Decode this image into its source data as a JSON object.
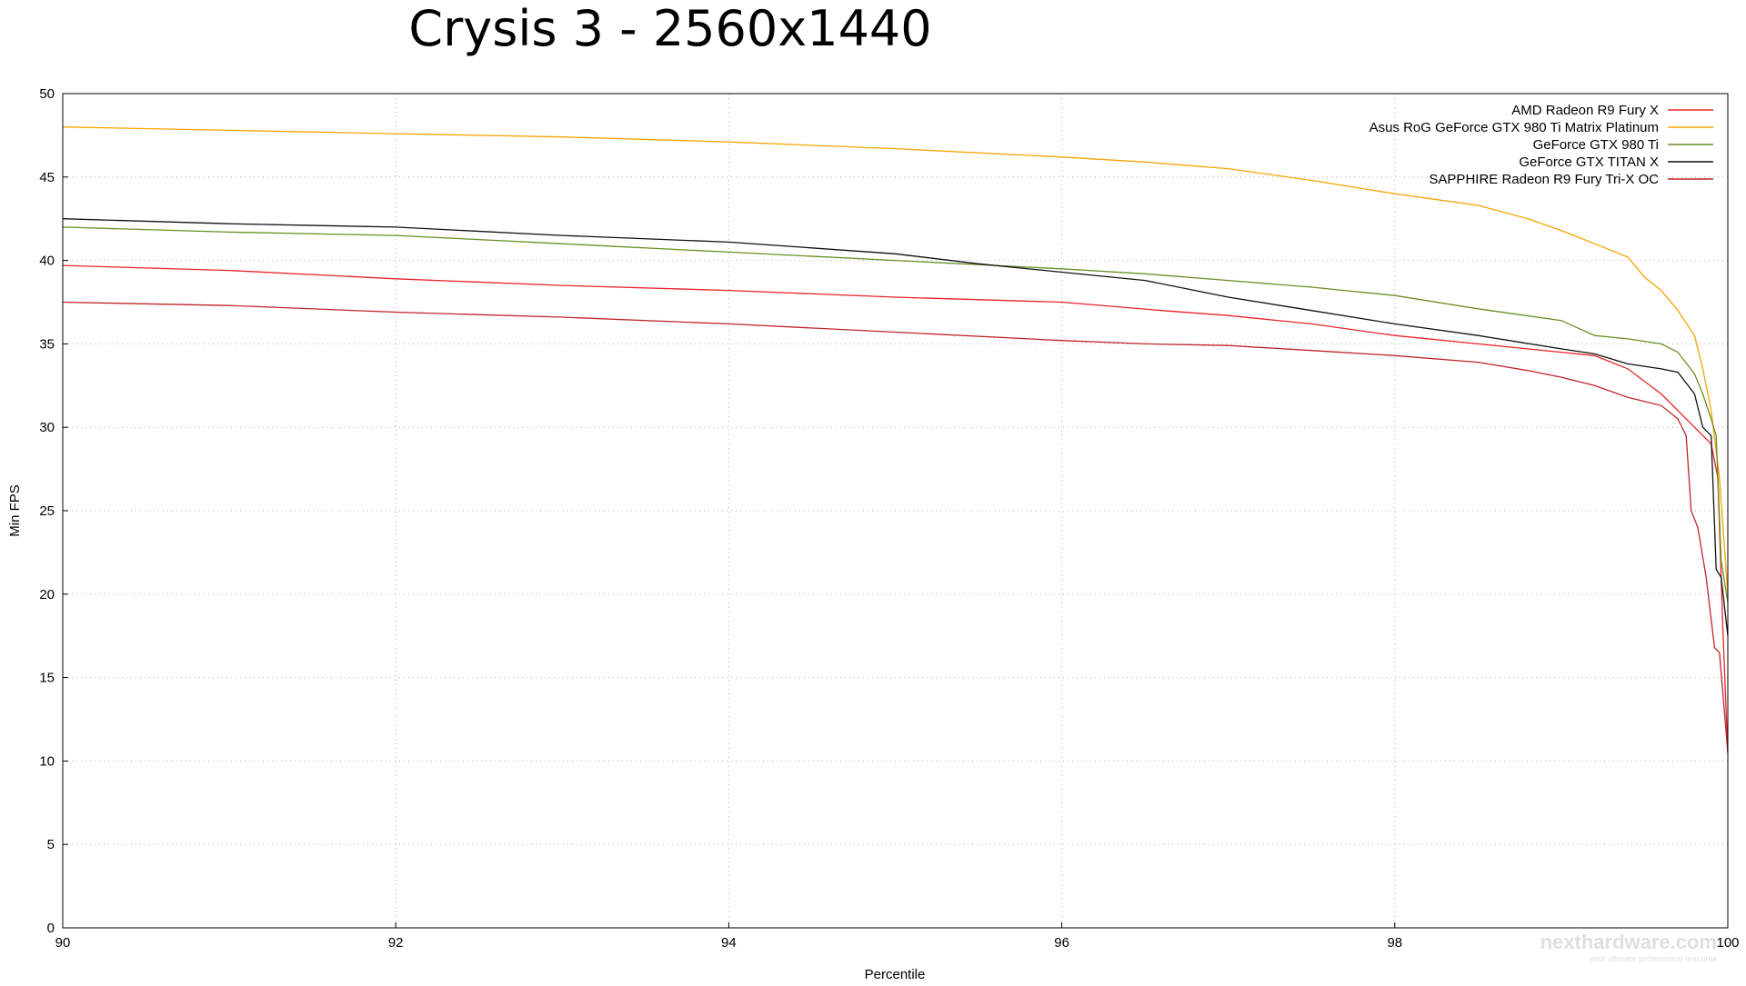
{
  "chart_data": {
    "type": "line",
    "title": "Crysis 3 - 2560x1440",
    "xlabel": "Percentile",
    "ylabel": "Min FPS",
    "xlim": [
      90,
      100
    ],
    "ylim": [
      0,
      50
    ],
    "xticks": [
      90,
      92,
      94,
      96,
      98,
      100
    ],
    "yticks": [
      0,
      5,
      10,
      15,
      20,
      25,
      30,
      35,
      40,
      45,
      50
    ],
    "grid": true,
    "legend_position": "top-right",
    "series": [
      {
        "name": "AMD Radeon R9 Fury X",
        "color": "#e8232a",
        "points": [
          [
            90,
            39.7
          ],
          [
            91,
            39.4
          ],
          [
            92,
            38.9
          ],
          [
            93,
            38.5
          ],
          [
            94,
            38.2
          ],
          [
            95,
            37.8
          ],
          [
            96,
            37.5
          ],
          [
            96.6,
            37.0
          ],
          [
            97,
            36.7
          ],
          [
            97.5,
            36.2
          ],
          [
            98,
            35.5
          ],
          [
            98.5,
            35.0
          ],
          [
            99,
            34.5
          ],
          [
            99.2,
            34.3
          ],
          [
            99.4,
            33.5
          ],
          [
            99.6,
            32.0
          ],
          [
            99.7,
            31.0
          ],
          [
            99.8,
            30.0
          ],
          [
            99.9,
            29.0
          ],
          [
            99.94,
            27.0
          ],
          [
            99.97,
            18.0
          ],
          [
            100,
            10.5
          ]
        ]
      },
      {
        "name": "Asus RoG GeForce GTX 980 Ti Matrix Platinum",
        "color": "#f7a400",
        "points": [
          [
            90,
            48.0
          ],
          [
            91,
            47.8
          ],
          [
            92,
            47.6
          ],
          [
            93,
            47.4
          ],
          [
            94,
            47.1
          ],
          [
            95,
            46.7
          ],
          [
            96,
            46.2
          ],
          [
            96.5,
            45.9
          ],
          [
            97,
            45.5
          ],
          [
            97.5,
            44.8
          ],
          [
            98,
            44.0
          ],
          [
            98.5,
            43.3
          ],
          [
            98.8,
            42.5
          ],
          [
            99,
            41.8
          ],
          [
            99.2,
            41.0
          ],
          [
            99.4,
            40.2
          ],
          [
            99.5,
            39.0
          ],
          [
            99.6,
            38.2
          ],
          [
            99.7,
            37.0
          ],
          [
            99.8,
            35.5
          ],
          [
            99.85,
            33.5
          ],
          [
            99.9,
            31.0
          ],
          [
            99.95,
            27.0
          ],
          [
            100,
            20.0
          ]
        ]
      },
      {
        "name": "GeForce GTX 980 Ti",
        "color": "#6b8e23",
        "points": [
          [
            90,
            42.0
          ],
          [
            91,
            41.7
          ],
          [
            92,
            41.5
          ],
          [
            93,
            41.0
          ],
          [
            94,
            40.5
          ],
          [
            95,
            40.0
          ],
          [
            96,
            39.5
          ],
          [
            96.5,
            39.2
          ],
          [
            97,
            38.8
          ],
          [
            97.5,
            38.4
          ],
          [
            98,
            37.9
          ],
          [
            98.5,
            37.1
          ],
          [
            99,
            36.4
          ],
          [
            99.2,
            35.5
          ],
          [
            99.4,
            35.3
          ],
          [
            99.6,
            35.0
          ],
          [
            99.7,
            34.5
          ],
          [
            99.8,
            33.2
          ],
          [
            99.85,
            32.0
          ],
          [
            99.9,
            30.5
          ],
          [
            99.93,
            29.5
          ],
          [
            99.96,
            22.0
          ],
          [
            100,
            19.5
          ]
        ]
      },
      {
        "name": "GeForce GTX TITAN X",
        "color": "#111111",
        "points": [
          [
            90,
            42.5
          ],
          [
            91,
            42.2
          ],
          [
            92,
            42.0
          ],
          [
            93,
            41.5
          ],
          [
            94,
            41.1
          ],
          [
            95,
            40.4
          ],
          [
            95.5,
            39.8
          ],
          [
            96,
            39.3
          ],
          [
            96.5,
            38.8
          ],
          [
            97,
            37.8
          ],
          [
            97.5,
            37.0
          ],
          [
            98,
            36.2
          ],
          [
            98.5,
            35.5
          ],
          [
            99,
            34.7
          ],
          [
            99.2,
            34.4
          ],
          [
            99.4,
            33.8
          ],
          [
            99.6,
            33.5
          ],
          [
            99.7,
            33.3
          ],
          [
            99.8,
            32.0
          ],
          [
            99.85,
            30.0
          ],
          [
            99.9,
            29.5
          ],
          [
            99.93,
            21.5
          ],
          [
            99.96,
            21.0
          ],
          [
            100,
            17.5
          ]
        ]
      },
      {
        "name": "SAPPHIRE Radeon R9 Fury Tri-X OC",
        "color": "#c0242b",
        "points": [
          [
            90,
            37.5
          ],
          [
            91,
            37.3
          ],
          [
            92,
            36.9
          ],
          [
            93,
            36.6
          ],
          [
            94,
            36.2
          ],
          [
            95,
            35.7
          ],
          [
            96,
            35.2
          ],
          [
            96.5,
            35.0
          ],
          [
            97,
            34.9
          ],
          [
            97.5,
            34.6
          ],
          [
            98,
            34.3
          ],
          [
            98.5,
            33.9
          ],
          [
            98.8,
            33.4
          ],
          [
            99,
            33.0
          ],
          [
            99.2,
            32.5
          ],
          [
            99.4,
            31.8
          ],
          [
            99.6,
            31.3
          ],
          [
            99.7,
            30.5
          ],
          [
            99.75,
            29.5
          ],
          [
            99.78,
            25.0
          ],
          [
            99.82,
            24.0
          ],
          [
            99.87,
            21.0
          ],
          [
            99.92,
            16.8
          ],
          [
            99.95,
            16.5
          ],
          [
            100,
            10.5
          ]
        ]
      }
    ]
  },
  "watermark": {
    "brand": "nexthardware.com",
    "tagline": "your ultimate professional resource"
  }
}
